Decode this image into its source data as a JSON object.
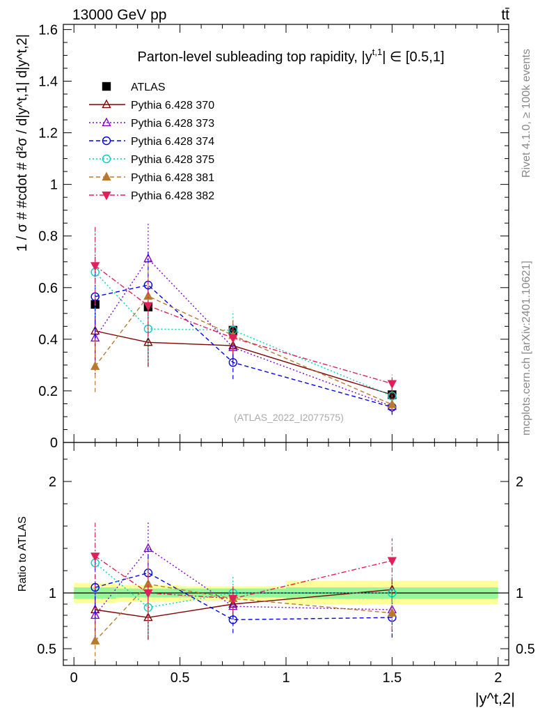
{
  "header": {
    "energy_label": "13000 GeV pp",
    "process_label": "tt̄",
    "side_label_top": "Rivet 4.1.0, ≥ 100k events",
    "side_label_bottom": "mcplots.cern.ch [arXiv:2401.10621]",
    "watermark": "(ATLAS_2022_I2077575)"
  },
  "chart_data": [
    {
      "type": "scatter",
      "panel": "main",
      "title": "Parton-level subleading top rapidity, |y^t1| ∈ [0.5,1]",
      "title_parts": {
        "pre": "Parton-level subleading top rapidity, |y",
        "sup": "t,1",
        "post": "| ∈ [0.5,1]"
      },
      "ylabel": "1 / σ # #cdot # d²σ / d|y^t,1| d|y^t,2|",
      "xlabel": "|y^t,2|",
      "xlim": [
        -0.05,
        2.05
      ],
      "ylim": [
        0,
        1.62
      ],
      "x_ticks": [
        "0",
        "0.5",
        "1",
        "1.5",
        "2"
      ],
      "y_ticks": [
        "0",
        "0.2",
        "0.4",
        "0.6",
        "0.8",
        "1",
        "1.2",
        "1.4",
        "1.6"
      ],
      "x": [
        0.1,
        0.35,
        0.75,
        1.5
      ],
      "series": [
        {
          "name": "ATLAS",
          "color": "#000000",
          "marker": "square-filled",
          "line": "none",
          "values": [
            0.535,
            0.525,
            0.435,
            0.185
          ],
          "errors": [
            0.0,
            0.0,
            0.0,
            0.0
          ]
        },
        {
          "name": "Pythia 6.428 370",
          "color": "#800000",
          "marker": "triangle-up-open",
          "line": "solid",
          "values": [
            0.432,
            0.388,
            0.375,
            0.185
          ],
          "errors": [
            0.14,
            0.095,
            0.06,
            0.025
          ]
        },
        {
          "name": "Pythia 6.428 373",
          "color": "#8000cc",
          "marker": "triangle-up-open",
          "line": "dotted",
          "values": [
            0.405,
            0.712,
            0.368,
            0.14
          ],
          "errors": [
            0.14,
            0.14,
            0.06,
            0.025
          ]
        },
        {
          "name": "Pythia 6.428 374",
          "color": "#0000ee",
          "marker": "circle-open",
          "line": "dashed",
          "values": [
            0.565,
            0.61,
            0.31,
            0.137
          ],
          "errors": [
            0.16,
            0.13,
            0.065,
            0.03
          ]
        },
        {
          "name": "Pythia 6.428 375",
          "color": "#00d0c0",
          "marker": "circle-open",
          "line": "dotted",
          "values": [
            0.66,
            0.44,
            0.435,
            0.18
          ],
          "errors": [
            0.17,
            0.13,
            0.075,
            0.03
          ]
        },
        {
          "name": "Pythia 6.428 381",
          "color": "#b87830",
          "marker": "triangle-up-filled",
          "line": "dashed",
          "values": [
            0.295,
            0.567,
            0.415,
            0.147
          ],
          "errors": [
            0.1,
            0.13,
            0.065,
            0.025
          ]
        },
        {
          "name": "Pythia 6.428 382",
          "color": "#e0205a",
          "marker": "triangle-down-filled",
          "line": "dashdot",
          "values": [
            0.685,
            0.53,
            0.405,
            0.228
          ],
          "errors": [
            0.15,
            0.12,
            0.06,
            0.035
          ]
        }
      ]
    },
    {
      "type": "scatter",
      "panel": "ratio",
      "ylabel": "Ratio to ATLAS",
      "xlabel": "|y^t,2|",
      "xlim": [
        -0.05,
        2.05
      ],
      "ylim": [
        0.35,
        2.35
      ],
      "y_ticks": [
        "0.5",
        "1",
        "2"
      ],
      "reference": 1,
      "x": [
        0.1,
        0.35,
        0.75,
        1.5
      ],
      "bands": {
        "bin_edges": [
          0.0,
          0.2,
          0.5,
          1.0,
          2.0
        ],
        "stat_green": [
          [
            0.95,
            1.05
          ],
          [
            0.96,
            1.04
          ],
          [
            0.96,
            1.04
          ],
          [
            0.95,
            1.05
          ]
        ],
        "total_yellow": [
          [
            0.91,
            1.09
          ],
          [
            0.92,
            1.07
          ],
          [
            0.93,
            1.06
          ],
          [
            0.9,
            1.11
          ]
        ]
      },
      "series": [
        {
          "name": "Pythia 6.428 370",
          "color": "#800000",
          "marker": "triangle-up-open",
          "line": "solid",
          "values": [
            0.85,
            0.78,
            0.9,
            1.03
          ],
          "errors": [
            0.25,
            0.2,
            0.12,
            0.1
          ]
        },
        {
          "name": "Pythia 6.428 373",
          "color": "#8000cc",
          "marker": "triangle-up-open",
          "line": "dotted",
          "values": [
            0.8,
            1.4,
            0.88,
            0.85
          ],
          "errors": [
            0.25,
            0.25,
            0.12,
            0.2
          ]
        },
        {
          "name": "Pythia 6.428 374",
          "color": "#0000ee",
          "marker": "circle-open",
          "line": "dashed",
          "values": [
            1.05,
            1.18,
            0.76,
            0.78
          ],
          "errors": [
            0.3,
            0.25,
            0.12,
            0.18
          ]
        },
        {
          "name": "Pythia 6.428 375",
          "color": "#00d0c0",
          "marker": "circle-open",
          "line": "dotted",
          "values": [
            1.27,
            0.87,
            1.0,
            1.0
          ],
          "errors": [
            0.3,
            0.25,
            0.15,
            0.15
          ]
        },
        {
          "name": "Pythia 6.428 381",
          "color": "#b87830",
          "marker": "triangle-up-filled",
          "line": "dashed",
          "values": [
            0.57,
            1.08,
            0.95,
            0.82
          ],
          "errors": [
            0.2,
            0.25,
            0.12,
            0.15
          ]
        },
        {
          "name": "Pythia 6.428 382",
          "color": "#e0205a",
          "marker": "triangle-down-filled",
          "line": "dashdot",
          "values": [
            1.33,
            1.0,
            0.95,
            1.29
          ],
          "errors": [
            0.3,
            0.25,
            0.12,
            0.2
          ]
        }
      ]
    }
  ]
}
